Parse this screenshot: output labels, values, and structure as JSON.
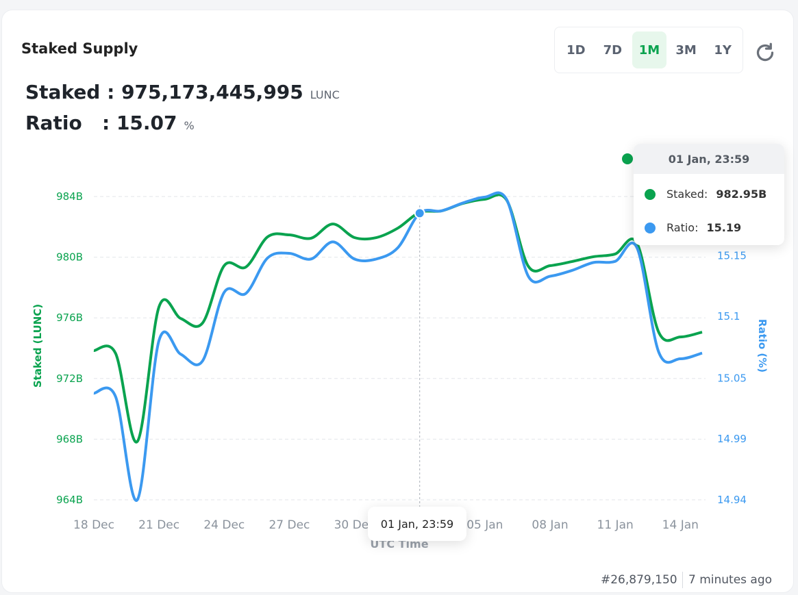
{
  "card": {
    "title": "Staked Supply",
    "ranges": [
      "1D",
      "7D",
      "1M",
      "3M",
      "1Y"
    ],
    "active_range": "1M",
    "stats": [
      {
        "label": "Staked",
        "separator": ":",
        "value": "975,173,445,995",
        "unit": "LUNC"
      },
      {
        "label": "Ratio",
        "separator": ":",
        "value": "15.07",
        "unit": "%"
      }
    ],
    "tooltip": {
      "title": "01 Jan, 23:59",
      "items": [
        {
          "label": "Staked:",
          "value": "982.95B"
        },
        {
          "label": "Ratio:",
          "value": "15.19"
        }
      ]
    },
    "x_tooltip": "01 Jan, 23:59",
    "footer": {
      "block": "#26,879,150",
      "age": "7 minutes ago"
    }
  },
  "chart_data": {
    "type": "line",
    "xlabel": "UTC Time",
    "ylabel": "Staked (LUNC)",
    "y2label": "Ratio (%)",
    "categories": [
      "18 Dec",
      null,
      null,
      "21 Dec",
      null,
      null,
      "24 Dec",
      null,
      null,
      "27 Dec",
      null,
      null,
      "30 Dec",
      null,
      null,
      null,
      null,
      null,
      "05 Jan",
      null,
      null,
      "08 Jan",
      null,
      null,
      "11 Jan",
      null,
      null,
      "14 Jan",
      null
    ],
    "series": [
      {
        "name": "Staked",
        "color": "#0aa34f",
        "axis": "y",
        "values": [
          973.84,
          973.66,
          967.84,
          976.73,
          975.96,
          975.65,
          979.44,
          979.35,
          981.34,
          981.47,
          981.25,
          982.19,
          981.29,
          981.29,
          981.92,
          982.95,
          983.05,
          983.55,
          983.82,
          983.77,
          979.4,
          979.44,
          979.71,
          980.03,
          980.21,
          980.93,
          975.06,
          974.74,
          975.06
        ]
      },
      {
        "name": "Ratio",
        "color": "#3b99f0",
        "axis": "y2",
        "values": [
          15.033,
          15.03,
          14.94,
          15.079,
          15.067,
          15.061,
          15.121,
          15.12,
          15.151,
          15.155,
          15.15,
          15.165,
          15.15,
          15.15,
          15.16,
          15.19,
          15.192,
          15.199,
          15.204,
          15.202,
          15.135,
          15.135,
          15.14,
          15.147,
          15.148,
          15.16,
          15.069,
          15.063,
          15.068
        ]
      }
    ],
    "ylim": [
      964,
      986
    ],
    "yticks": [
      {
        "value": 964,
        "label": "964B"
      },
      {
        "value": 968,
        "label": "968B"
      },
      {
        "value": 972,
        "label": "972B"
      },
      {
        "value": 976,
        "label": "976B"
      },
      {
        "value": 980,
        "label": "980B"
      },
      {
        "value": 984,
        "label": "984B"
      }
    ],
    "y2lim": [
      14.94,
      15.231
    ],
    "y2ticks": [
      14.94,
      {
        "value": 14.993,
        "label": "14.99"
      },
      {
        "value": 15.046,
        "label": "15.05"
      },
      15.1,
      {
        "value": 15.153,
        "label": "15.15"
      }
    ],
    "grid": true,
    "hover_index": 15
  }
}
